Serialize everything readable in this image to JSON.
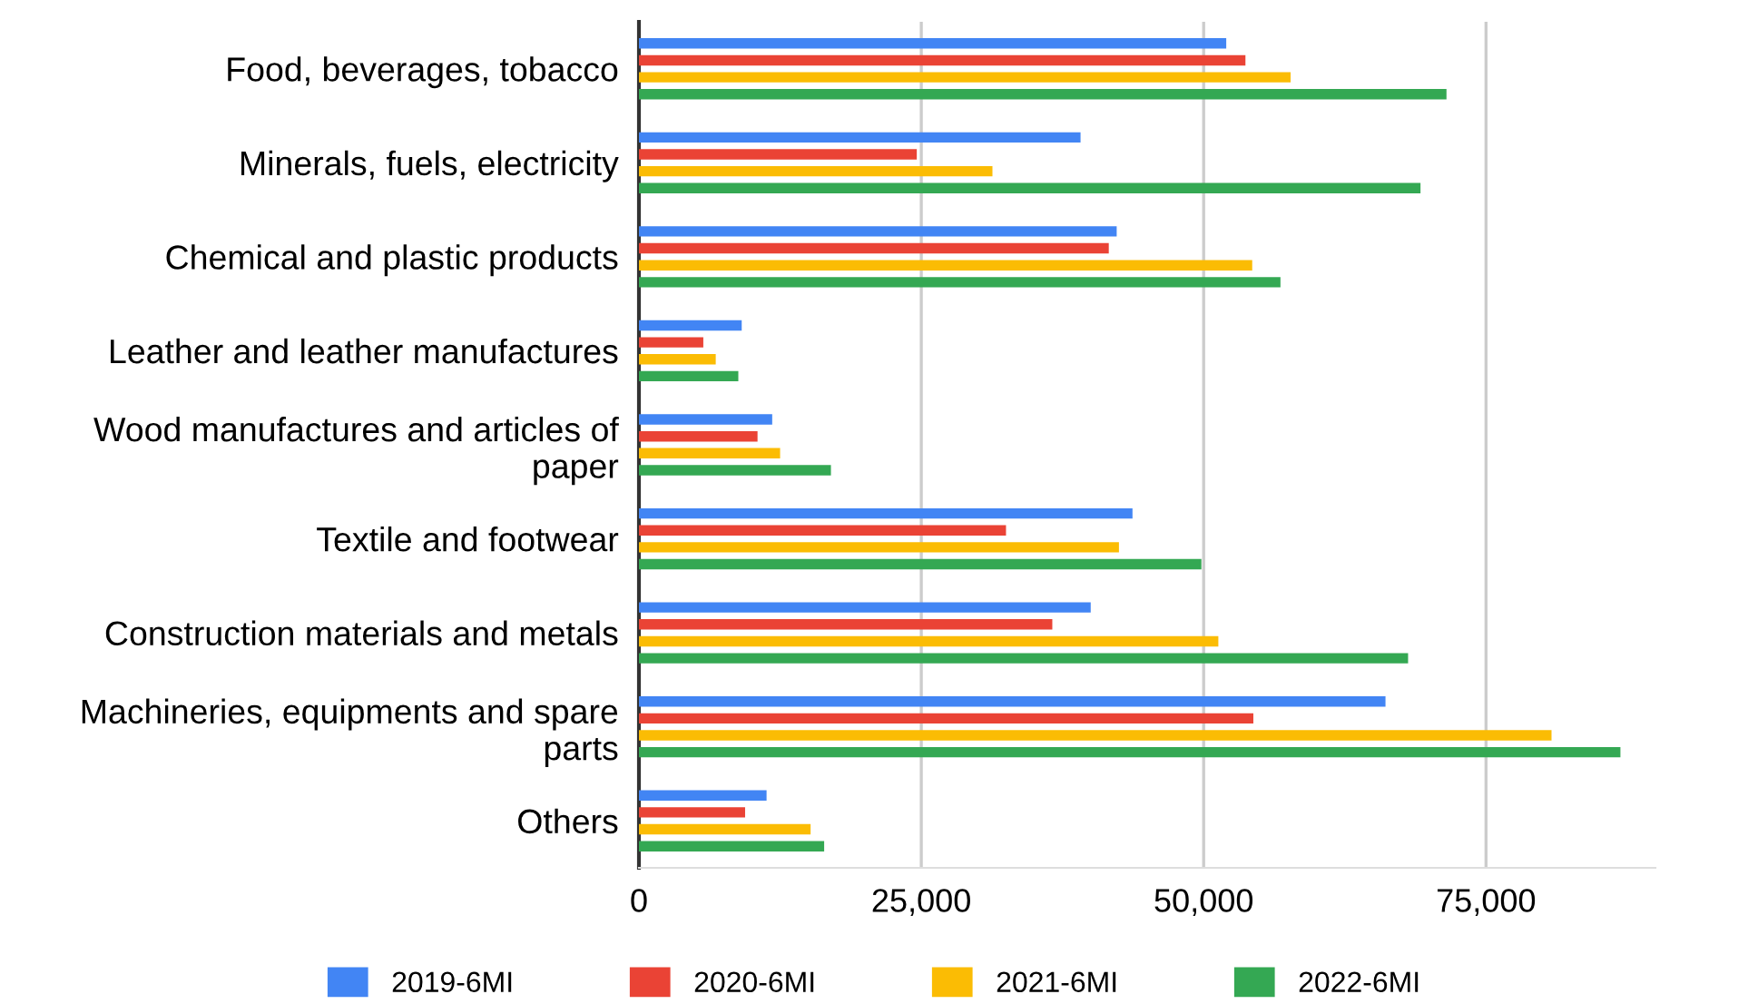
{
  "chart_data": {
    "type": "bar",
    "orientation": "horizontal",
    "categories": [
      "Food, beverages, tobacco",
      "Minerals, fuels, electricity",
      "Chemical and plastic products",
      "Leather and leather manufactures",
      "Wood manufactures and articles of paper",
      "Textile and footwear",
      "Construction materials and metals",
      "Machineries, equipments and spare parts",
      "Others"
    ],
    "series": [
      {
        "name": "2019-6MI",
        "color": "#4285f4",
        "values": [
          52000,
          39100,
          42300,
          9100,
          11800,
          43700,
          40000,
          66100,
          11300
        ]
      },
      {
        "name": "2020-6MI",
        "color": "#ea4335",
        "values": [
          53700,
          24600,
          41600,
          5700,
          10500,
          32500,
          36600,
          54400,
          9400
        ]
      },
      {
        "name": "2021-6MI",
        "color": "#fbbc04",
        "values": [
          57700,
          31300,
          54300,
          6800,
          12500,
          42500,
          51300,
          80800,
          15200
        ]
      },
      {
        "name": "2022-6MI",
        "color": "#34a853",
        "values": [
          71500,
          69200,
          56800,
          8800,
          17000,
          49800,
          68100,
          86900,
          16400
        ]
      }
    ],
    "xlim": [
      0,
      90000
    ],
    "xticks": [
      {
        "value": 0,
        "label": "0"
      },
      {
        "value": 25000,
        "label": "25,000"
      },
      {
        "value": 50000,
        "label": "50,000"
      },
      {
        "value": 75000,
        "label": "75,000"
      }
    ],
    "grid": "x",
    "legend": "bottom"
  }
}
